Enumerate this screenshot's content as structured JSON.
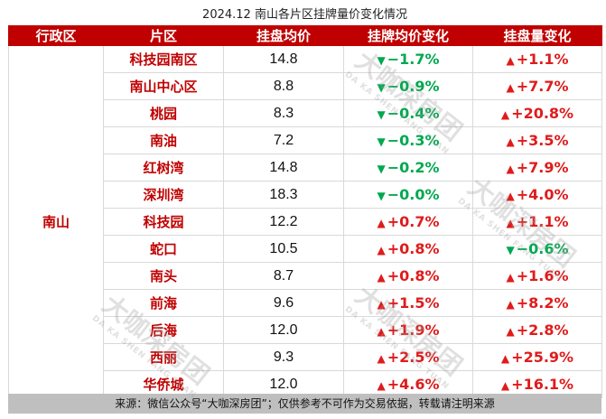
{
  "title": "2024.12 南山各片区挂牌量价变化情况",
  "headers": [
    "行政区",
    "片区",
    "挂盘均价",
    "挂牌均价变化",
    "挂盘量变化"
  ],
  "district": "南山",
  "rows": [
    {
      "area": "科技园南区",
      "price": "14.8",
      "price_change": "−1.7%",
      "price_dir": "down",
      "volume_change": "+1.1%",
      "volume_dir": "up"
    },
    {
      "area": "南山中心区",
      "price": "8.8",
      "price_change": "−0.9%",
      "price_dir": "down",
      "volume_change": "+7.7%",
      "volume_dir": "up"
    },
    {
      "area": "桃园",
      "price": "8.3",
      "price_change": "−0.4%",
      "price_dir": "down",
      "volume_change": "+20.8%",
      "volume_dir": "up"
    },
    {
      "area": "南油",
      "price": "7.2",
      "price_change": "−0.3%",
      "price_dir": "down",
      "volume_change": "+3.5%",
      "volume_dir": "up"
    },
    {
      "area": "红树湾",
      "price": "14.8",
      "price_change": "−0.2%",
      "price_dir": "down",
      "volume_change": "+7.9%",
      "volume_dir": "up"
    },
    {
      "area": "深圳湾",
      "price": "18.3",
      "price_change": "−0.0%",
      "price_dir": "down",
      "volume_change": "+4.0%",
      "volume_dir": "up"
    },
    {
      "area": "科技园",
      "price": "12.2",
      "price_change": "+0.7%",
      "price_dir": "up",
      "volume_change": "+1.1%",
      "volume_dir": "up"
    },
    {
      "area": "蛇口",
      "price": "10.5",
      "price_change": "+0.8%",
      "price_dir": "up",
      "volume_change": "−0.6%",
      "volume_dir": "down"
    },
    {
      "area": "南头",
      "price": "8.7",
      "price_change": "+0.8%",
      "price_dir": "up",
      "volume_change": "+1.6%",
      "volume_dir": "up"
    },
    {
      "area": "前海",
      "price": "9.6",
      "price_change": "+1.5%",
      "price_dir": "up",
      "volume_change": "+8.2%",
      "volume_dir": "up"
    },
    {
      "area": "后海",
      "price": "12.0",
      "price_change": "+1.9%",
      "price_dir": "up",
      "volume_change": "+2.8%",
      "volume_dir": "up"
    },
    {
      "area": "西丽",
      "price": "9.3",
      "price_change": "+2.5%",
      "price_dir": "up",
      "volume_change": "+25.9%",
      "volume_dir": "up"
    },
    {
      "area": "华侨城",
      "price": "12.0",
      "price_change": "+4.6%",
      "price_dir": "up",
      "volume_change": "+16.1%",
      "volume_dir": "up"
    }
  ],
  "footer": "来源：微信公众号“大咖深房团”；仅供参考不可作为交易依据，转载请注明来源",
  "watermark": {
    "main": "大咖深房团",
    "sub": "DA KA SHEN FANG TUAN"
  },
  "icons": {
    "down": "triangle-down-icon",
    "up": "triangle-up-icon"
  },
  "colors": {
    "header_bg": "#c00000",
    "down": "#00a84f",
    "up": "#e01b1b",
    "footer_bg": "#bfbfbf"
  }
}
